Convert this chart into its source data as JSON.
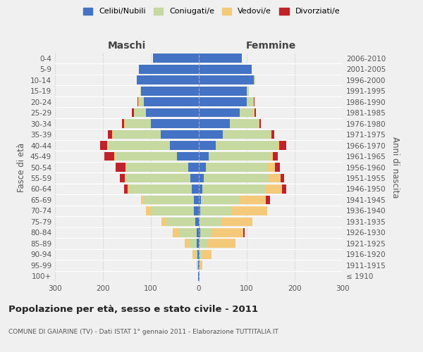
{
  "age_groups": [
    "100+",
    "95-99",
    "90-94",
    "85-89",
    "80-84",
    "75-79",
    "70-74",
    "65-69",
    "60-64",
    "55-59",
    "50-54",
    "45-49",
    "40-44",
    "35-39",
    "30-34",
    "25-29",
    "20-24",
    "15-19",
    "10-14",
    "5-9",
    "0-4"
  ],
  "birth_years": [
    "≤ 1910",
    "1911-1915",
    "1916-1920",
    "1921-1925",
    "1926-1930",
    "1931-1935",
    "1936-1940",
    "1941-1945",
    "1946-1950",
    "1951-1955",
    "1956-1960",
    "1961-1965",
    "1966-1970",
    "1971-1975",
    "1976-1980",
    "1981-1985",
    "1986-1990",
    "1991-1995",
    "1996-2000",
    "2001-2005",
    "2006-2010"
  ],
  "male_celibe": [
    1,
    2,
    3,
    5,
    5,
    8,
    10,
    10,
    15,
    18,
    22,
    45,
    60,
    80,
    100,
    110,
    115,
    120,
    130,
    125,
    95
  ],
  "male_coniugato": [
    0,
    2,
    5,
    15,
    35,
    60,
    90,
    105,
    130,
    135,
    130,
    130,
    130,
    100,
    55,
    25,
    10,
    2,
    0,
    0,
    0
  ],
  "male_vedovo": [
    0,
    1,
    5,
    10,
    15,
    10,
    10,
    5,
    3,
    2,
    1,
    2,
    1,
    1,
    1,
    1,
    1,
    0,
    0,
    0,
    0
  ],
  "male_divorziato": [
    0,
    0,
    0,
    0,
    0,
    0,
    0,
    0,
    8,
    10,
    20,
    20,
    15,
    8,
    5,
    3,
    2,
    0,
    0,
    0,
    0
  ],
  "female_celibe": [
    1,
    1,
    2,
    2,
    3,
    2,
    3,
    5,
    8,
    10,
    14,
    20,
    35,
    50,
    65,
    85,
    100,
    100,
    115,
    110,
    90
  ],
  "female_coniugato": [
    0,
    2,
    5,
    15,
    25,
    45,
    65,
    80,
    130,
    135,
    130,
    130,
    130,
    100,
    60,
    30,
    15,
    4,
    2,
    0,
    0
  ],
  "female_vedovo": [
    1,
    5,
    20,
    60,
    65,
    65,
    75,
    55,
    35,
    25,
    15,
    5,
    3,
    2,
    1,
    1,
    0,
    0,
    0,
    0,
    0
  ],
  "female_divorziato": [
    0,
    0,
    0,
    0,
    3,
    0,
    0,
    8,
    10,
    8,
    10,
    10,
    15,
    5,
    3,
    3,
    1,
    0,
    0,
    0,
    0
  ],
  "colors": {
    "celibe": "#4472C4",
    "coniugato": "#C5D9A0",
    "vedovo": "#F5C97A",
    "divorziato": "#C0222A"
  },
  "title": "Popolazione per età, sesso e stato civile - 2011",
  "subtitle": "COMUNE DI GAIARINE (TV) - Dati ISTAT 1° gennaio 2011 - Elaborazione TUTTITALIA.IT",
  "xlabel_left": "Maschi",
  "xlabel_right": "Femmine",
  "ylabel_left": "Fasce di età",
  "ylabel_right": "Anni di nascita",
  "xlim": 300,
  "background_color": "#f0f0f0",
  "grid_color": "#cccccc"
}
